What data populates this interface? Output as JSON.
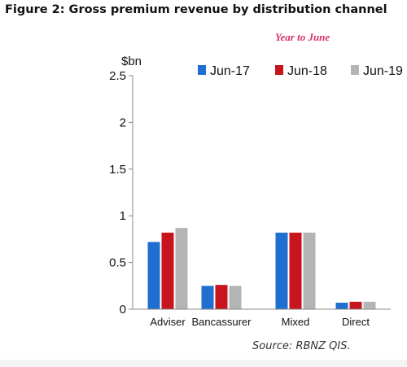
{
  "figure_title": "Figure 2: Gross premium revenue by distribution channel",
  "subtitle": "Year to June",
  "source": "Source: RBNZ QIS.",
  "colors": {
    "Jun-17": "#1f6fd1",
    "Jun-18": "#c8141c",
    "Jun-19": "#b4b4b4"
  },
  "chart_data": {
    "type": "bar",
    "title": "Gross premium revenue by distribution channel",
    "subtitle": "Year to June",
    "ylabel": "$bn",
    "xlabel": "",
    "ylim": [
      0,
      2.5
    ],
    "yticks": [
      "0",
      "0.5",
      "1",
      "1.5",
      "2",
      "2.5"
    ],
    "categories": [
      "Adviser",
      "Bancassurer",
      "Mixed",
      "Direct"
    ],
    "series": [
      {
        "name": "Jun-17",
        "values": [
          0.72,
          0.25,
          0.82,
          0.07
        ]
      },
      {
        "name": "Jun-18",
        "values": [
          0.82,
          0.26,
          0.82,
          0.08
        ]
      },
      {
        "name": "Jun-19",
        "values": [
          0.87,
          0.25,
          0.82,
          0.08
        ]
      }
    ],
    "legend_position": "top",
    "grid": false
  }
}
